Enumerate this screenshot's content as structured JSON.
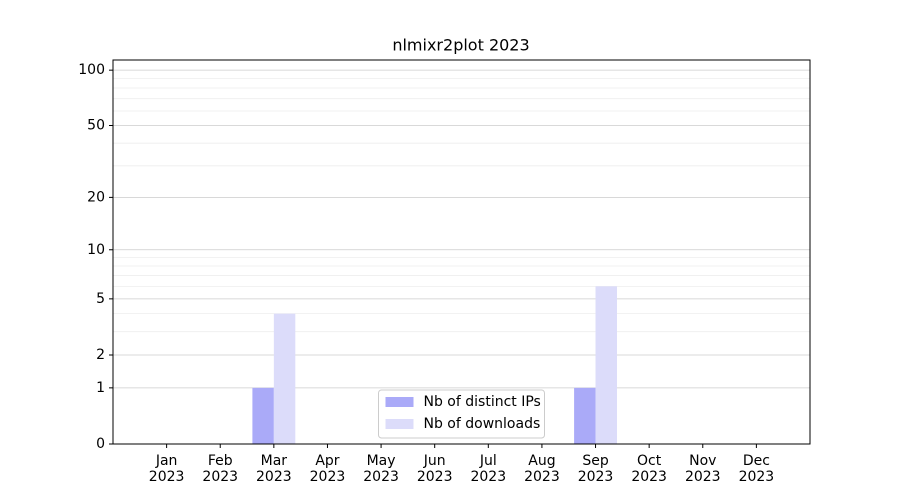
{
  "chart_data": {
    "type": "bar",
    "title": "nlmixr2plot 2023",
    "categories": [
      "Jan 2023",
      "Feb 2023",
      "Mar 2023",
      "Apr 2023",
      "May 2023",
      "Jun 2023",
      "Jul 2023",
      "Aug 2023",
      "Sep 2023",
      "Oct 2023",
      "Nov 2023",
      "Dec 2023"
    ],
    "series": [
      {
        "name": "Nb of distinct IPs",
        "color": "#aaaaf8",
        "values": [
          0,
          0,
          1,
          0,
          0,
          0,
          0,
          0,
          1,
          0,
          0,
          0
        ]
      },
      {
        "name": "Nb of downloads",
        "color": "#dcdcfa",
        "values": [
          0,
          0,
          4,
          0,
          0,
          0,
          0,
          0,
          6,
          0,
          0,
          0
        ]
      }
    ],
    "yscale": "log1p",
    "ylim": [
      0,
      113.5
    ],
    "yticks": [
      0,
      1,
      2,
      5,
      10,
      20,
      50,
      100
    ],
    "minor_yticks": [
      3,
      4,
      6,
      7,
      8,
      9,
      30,
      40,
      60,
      70,
      80,
      90
    ],
    "grid": true,
    "legend": "lower center"
  }
}
